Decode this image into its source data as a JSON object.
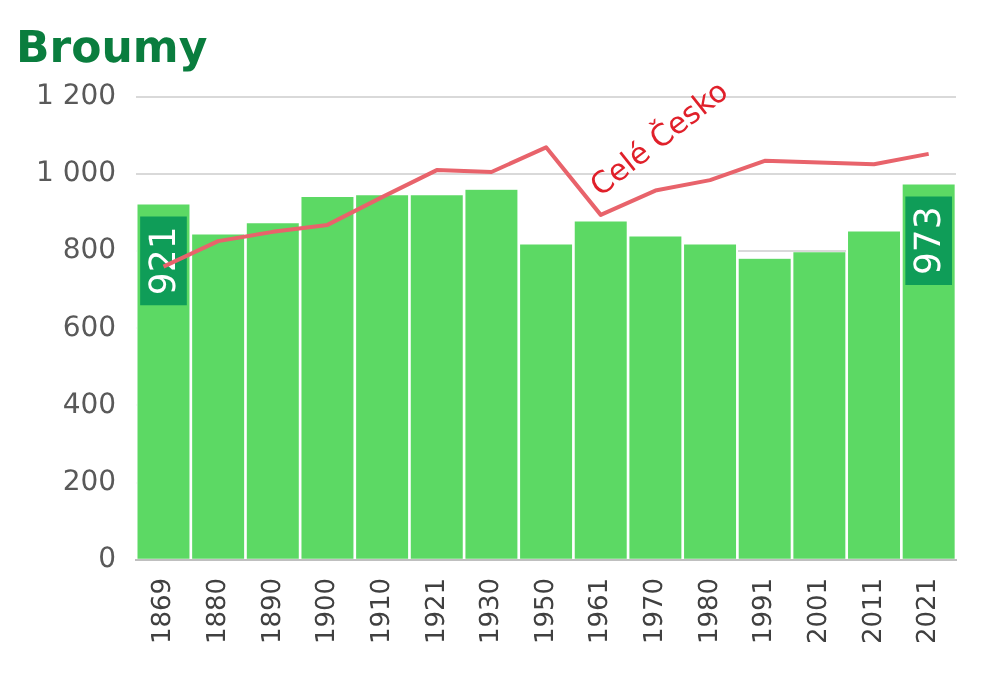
{
  "chart_data": {
    "type": "bar",
    "title": "Broumy",
    "categories": [
      "1869",
      "1880",
      "1890",
      "1900",
      "1910",
      "1921",
      "1930",
      "1950",
      "1961",
      "1970",
      "1980",
      "1991",
      "2001",
      "2011",
      "2021"
    ],
    "series": [
      {
        "color": "#5cd964",
        "values": [
          921,
          843,
          872,
          940,
          945,
          945,
          959,
          817,
          877,
          838,
          817,
          780,
          797,
          851,
          973
        ],
        "value_labels": [
          "921",
          null,
          null,
          null,
          null,
          null,
          null,
          null,
          null,
          null,
          null,
          null,
          null,
          null,
          "973"
        ]
      },
      {
        "type": "line",
        "name": "Celé Česko",
        "color": "#e8636b",
        "values": [
          760,
          826,
          850,
          868,
          940,
          1010,
          1005,
          1069,
          894,
          957,
          984,
          1034,
          1030,
          1025,
          1052
        ]
      }
    ],
    "ylim": [
      0,
      1200
    ],
    "yticks": [
      0,
      200,
      400,
      600,
      800,
      {
        "value": 1000,
        "label": "1 000"
      },
      {
        "value": 1200,
        "label": "1 200"
      }
    ],
    "grid": "y",
    "legend": false,
    "marker": "none",
    "line_style": "solid"
  }
}
